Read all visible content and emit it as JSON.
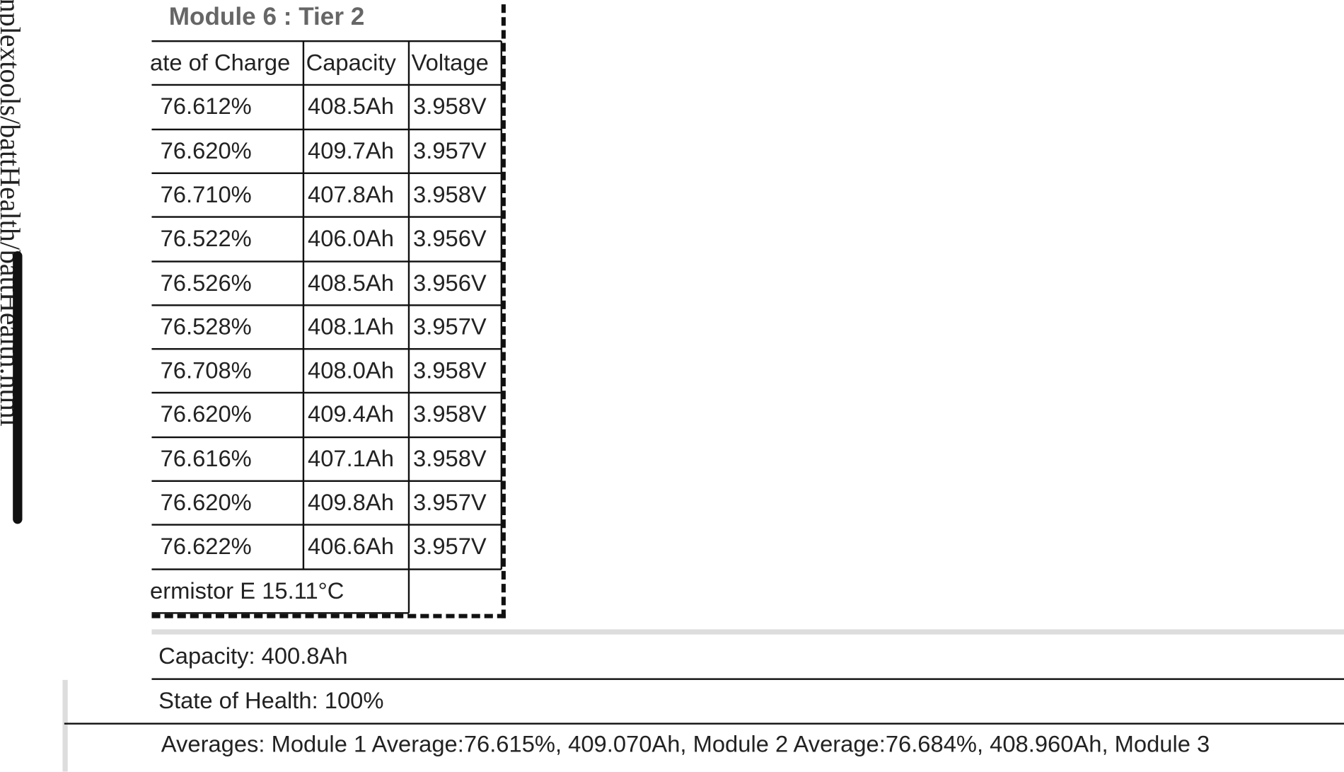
{
  "sidebar": {
    "path": "nplextools/battHealth/battHealth.html"
  },
  "module": {
    "title": "Module 6 : Tier 2",
    "headers": [
      "ate of Charge",
      "Capacity",
      "Voltage"
    ],
    "rows": [
      [
        "76.612%",
        "408.5Ah",
        "3.958V"
      ],
      [
        "76.620%",
        "409.7Ah",
        "3.957V"
      ],
      [
        "76.710%",
        "407.8Ah",
        "3.958V"
      ],
      [
        "76.522%",
        "406.0Ah",
        "3.956V"
      ],
      [
        "76.526%",
        "408.5Ah",
        "3.956V"
      ],
      [
        "76.528%",
        "408.1Ah",
        "3.957V"
      ],
      [
        "76.708%",
        "408.0Ah",
        "3.958V"
      ],
      [
        "76.620%",
        "409.4Ah",
        "3.958V"
      ],
      [
        "76.616%",
        "407.1Ah",
        "3.958V"
      ],
      [
        "76.620%",
        "409.8Ah",
        "3.957V"
      ],
      [
        "76.622%",
        "406.6Ah",
        "3.957V"
      ]
    ],
    "thermistor": "ermistor E 15.11°C"
  },
  "summary": {
    "capacity": "Capacity: 400.8Ah",
    "health": "State of Health: 100%",
    "averages": "Averages: Module 1 Average:76.615%, 409.070Ah, Module 2 Average:76.684%, 408.960Ah, Module 3"
  }
}
